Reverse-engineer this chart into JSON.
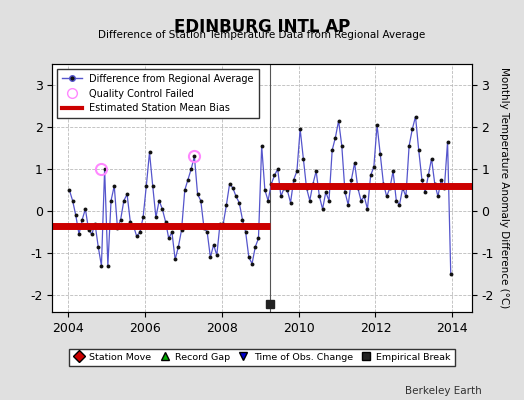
{
  "title": "EDINBURG INTL AP",
  "subtitle": "Difference of Station Temperature Data from Regional Average",
  "ylabel": "Monthly Temperature Anomaly Difference (°C)",
  "xlim": [
    2003.6,
    2014.5
  ],
  "ylim": [
    -2.4,
    3.5
  ],
  "yticks": [
    -2,
    -1,
    0,
    1,
    2,
    3
  ],
  "xticks": [
    2004,
    2006,
    2008,
    2010,
    2012,
    2014
  ],
  "background_color": "#e0e0e0",
  "plot_bg_color": "#ffffff",
  "grid_color": "#bbbbbb",
  "line_color": "#5555cc",
  "marker_color": "#111111",
  "bias_color": "#cc0000",
  "qc_fail_color": "#ff88ff",
  "station_move_color": "#cc0000",
  "record_gap_color": "#00aa00",
  "obs_change_color": "#0000cc",
  "empirical_break_color": "#222222",
  "bias_break_x": 2009.25,
  "bias1_y": -0.35,
  "bias2_y": 0.6,
  "bias1_xstart": 2003.6,
  "bias1_xend": 2009.25,
  "bias2_xstart": 2009.25,
  "bias2_xend": 2014.5,
  "berkeley_earth_text": "Berkeley Earth",
  "time_series": [
    [
      2004.042,
      0.5
    ],
    [
      2004.125,
      0.25
    ],
    [
      2004.208,
      -0.1
    ],
    [
      2004.292,
      -0.55
    ],
    [
      2004.375,
      -0.2
    ],
    [
      2004.458,
      0.05
    ],
    [
      2004.542,
      -0.45
    ],
    [
      2004.625,
      -0.55
    ],
    [
      2004.708,
      -0.3
    ],
    [
      2004.792,
      -0.85
    ],
    [
      2004.875,
      -1.3
    ],
    [
      2004.958,
      1.0
    ],
    [
      2005.042,
      -1.3
    ],
    [
      2005.125,
      0.25
    ],
    [
      2005.208,
      0.6
    ],
    [
      2005.292,
      -0.4
    ],
    [
      2005.375,
      -0.2
    ],
    [
      2005.458,
      0.25
    ],
    [
      2005.542,
      0.4
    ],
    [
      2005.625,
      -0.25
    ],
    [
      2005.708,
      -0.35
    ],
    [
      2005.792,
      -0.6
    ],
    [
      2005.875,
      -0.5
    ],
    [
      2005.958,
      -0.15
    ],
    [
      2006.042,
      0.6
    ],
    [
      2006.125,
      1.4
    ],
    [
      2006.208,
      0.6
    ],
    [
      2006.292,
      -0.15
    ],
    [
      2006.375,
      0.25
    ],
    [
      2006.458,
      0.05
    ],
    [
      2006.542,
      -0.25
    ],
    [
      2006.625,
      -0.65
    ],
    [
      2006.708,
      -0.5
    ],
    [
      2006.792,
      -1.15
    ],
    [
      2006.875,
      -0.85
    ],
    [
      2006.958,
      -0.45
    ],
    [
      2007.042,
      0.5
    ],
    [
      2007.125,
      0.75
    ],
    [
      2007.208,
      1.0
    ],
    [
      2007.292,
      1.3
    ],
    [
      2007.375,
      0.4
    ],
    [
      2007.458,
      0.25
    ],
    [
      2007.542,
      -0.4
    ],
    [
      2007.625,
      -0.5
    ],
    [
      2007.708,
      -1.1
    ],
    [
      2007.792,
      -0.8
    ],
    [
      2007.875,
      -1.05
    ],
    [
      2007.958,
      -0.3
    ],
    [
      2008.042,
      -0.3
    ],
    [
      2008.125,
      0.15
    ],
    [
      2008.208,
      0.65
    ],
    [
      2008.292,
      0.55
    ],
    [
      2008.375,
      0.35
    ],
    [
      2008.458,
      0.2
    ],
    [
      2008.542,
      -0.2
    ],
    [
      2008.625,
      -0.5
    ],
    [
      2008.708,
      -1.1
    ],
    [
      2008.792,
      -1.25
    ],
    [
      2008.875,
      -0.85
    ],
    [
      2008.958,
      -0.65
    ],
    [
      2009.042,
      1.55
    ],
    [
      2009.125,
      0.5
    ],
    [
      2009.208,
      0.25
    ],
    [
      2009.292,
      0.65
    ],
    [
      2009.375,
      0.85
    ],
    [
      2009.458,
      1.0
    ],
    [
      2009.542,
      0.35
    ],
    [
      2009.625,
      0.55
    ],
    [
      2009.708,
      0.5
    ],
    [
      2009.792,
      0.2
    ],
    [
      2009.875,
      0.75
    ],
    [
      2009.958,
      0.95
    ],
    [
      2010.042,
      1.95
    ],
    [
      2010.125,
      1.25
    ],
    [
      2010.208,
      0.55
    ],
    [
      2010.292,
      0.25
    ],
    [
      2010.375,
      0.65
    ],
    [
      2010.458,
      0.95
    ],
    [
      2010.542,
      0.35
    ],
    [
      2010.625,
      0.05
    ],
    [
      2010.708,
      0.45
    ],
    [
      2010.792,
      0.25
    ],
    [
      2010.875,
      1.45
    ],
    [
      2010.958,
      1.75
    ],
    [
      2011.042,
      2.15
    ],
    [
      2011.125,
      1.55
    ],
    [
      2011.208,
      0.45
    ],
    [
      2011.292,
      0.15
    ],
    [
      2011.375,
      0.75
    ],
    [
      2011.458,
      1.15
    ],
    [
      2011.542,
      0.55
    ],
    [
      2011.625,
      0.25
    ],
    [
      2011.708,
      0.35
    ],
    [
      2011.792,
      0.05
    ],
    [
      2011.875,
      0.85
    ],
    [
      2011.958,
      1.05
    ],
    [
      2012.042,
      2.05
    ],
    [
      2012.125,
      1.35
    ],
    [
      2012.208,
      0.65
    ],
    [
      2012.292,
      0.35
    ],
    [
      2012.375,
      0.55
    ],
    [
      2012.458,
      0.95
    ],
    [
      2012.542,
      0.25
    ],
    [
      2012.625,
      0.15
    ],
    [
      2012.708,
      0.55
    ],
    [
      2012.792,
      0.35
    ],
    [
      2012.875,
      1.55
    ],
    [
      2012.958,
      1.95
    ],
    [
      2013.042,
      2.25
    ],
    [
      2013.125,
      1.45
    ],
    [
      2013.208,
      0.75
    ],
    [
      2013.292,
      0.45
    ],
    [
      2013.375,
      0.85
    ],
    [
      2013.458,
      1.25
    ],
    [
      2013.542,
      0.65
    ],
    [
      2013.625,
      0.35
    ],
    [
      2013.708,
      0.75
    ],
    [
      2013.792,
      0.55
    ],
    [
      2013.875,
      1.65
    ],
    [
      2013.958,
      -1.5
    ]
  ],
  "qc_fail_points": [
    [
      2004.875,
      1.0
    ],
    [
      2007.292,
      1.3
    ]
  ],
  "empirical_break_point": [
    2009.25,
    -2.2
  ],
  "obs_change_point": [
    2009.25,
    -2.2
  ]
}
